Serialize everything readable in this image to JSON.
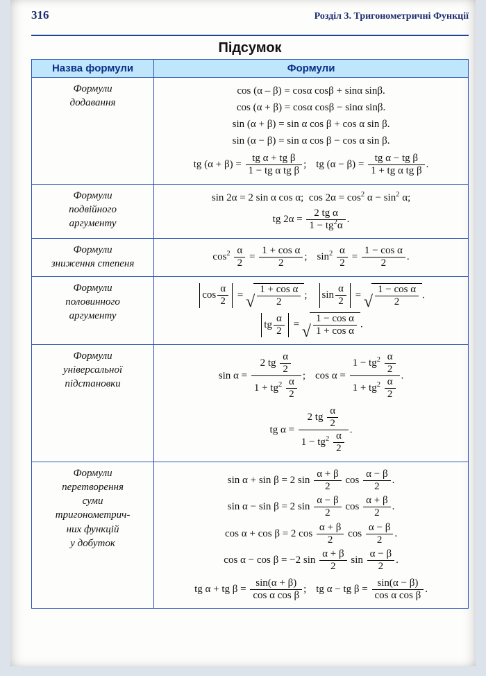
{
  "page_number": "316",
  "chapter_label": "Розділ 3. Тригонометричні Функції",
  "summary_title": "Підсумок",
  "header_name": "Назва формули",
  "header_formula": "Формули",
  "colors": {
    "rule": "#1f3f9e",
    "border": "#2a53b5",
    "th_bg": "#bfe6fb",
    "th_text": "#0b2f88",
    "page_bg": "#fdfdfc",
    "outer_bg": "#dce3ea"
  },
  "rows": [
    {
      "name_lines": [
        "Формули",
        "додавання"
      ]
    },
    {
      "name_lines": [
        "Формули",
        "подвійного",
        "аргументу"
      ]
    },
    {
      "name_lines": [
        "Формули",
        "зниження степеня"
      ]
    },
    {
      "name_lines": [
        "Формули",
        "половинного",
        "аргументу"
      ]
    },
    {
      "name_lines": [
        "Формули",
        "універсальної",
        "підстановки"
      ]
    },
    {
      "name_lines": [
        "Формули",
        "перетворення",
        "суми",
        "тригонометрич-",
        "них функцій",
        "у добуток"
      ]
    }
  ]
}
